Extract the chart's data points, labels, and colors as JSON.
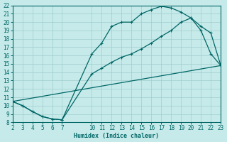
{
  "xlabel": "Humidex (Indice chaleur)",
  "background_color": "#c6eaea",
  "grid_color": "#a0cccc",
  "line_color": "#006666",
  "xlim": [
    2,
    23
  ],
  "ylim": [
    8,
    22
  ],
  "xticks": [
    2,
    3,
    4,
    5,
    6,
    7,
    10,
    11,
    12,
    13,
    14,
    15,
    16,
    17,
    18,
    19,
    20,
    21,
    22,
    23
  ],
  "yticks": [
    8,
    9,
    10,
    11,
    12,
    13,
    14,
    15,
    16,
    17,
    18,
    19,
    20,
    21,
    22
  ],
  "curve1_x": [
    2,
    3,
    4,
    5,
    6,
    7,
    10,
    11,
    12,
    13,
    14,
    15,
    16,
    17,
    18,
    19,
    20,
    21,
    22,
    23
  ],
  "curve1_y": [
    10.5,
    10.0,
    9.3,
    8.7,
    8.4,
    8.3,
    16.2,
    17.5,
    19.5,
    20.0,
    20.0,
    21.0,
    21.5,
    21.9,
    21.7,
    21.2,
    20.5,
    19.0,
    16.2,
    14.8
  ],
  "curve2_x": [
    2,
    3,
    4,
    5,
    6,
    7,
    10,
    11,
    12,
    13,
    14,
    15,
    16,
    17,
    18,
    19,
    20,
    21,
    22,
    23
  ],
  "curve2_y": [
    10.5,
    10.0,
    9.3,
    8.7,
    8.4,
    8.3,
    13.8,
    14.5,
    15.2,
    15.8,
    16.2,
    16.8,
    17.5,
    18.3,
    19.0,
    20.0,
    20.5,
    19.5,
    18.7,
    14.8
  ],
  "curve3_x": [
    2,
    23
  ],
  "curve3_y": [
    10.5,
    14.8
  ],
  "font_family": "monospace",
  "tick_fontsize": 5.5,
  "xlabel_fontsize": 6.0
}
